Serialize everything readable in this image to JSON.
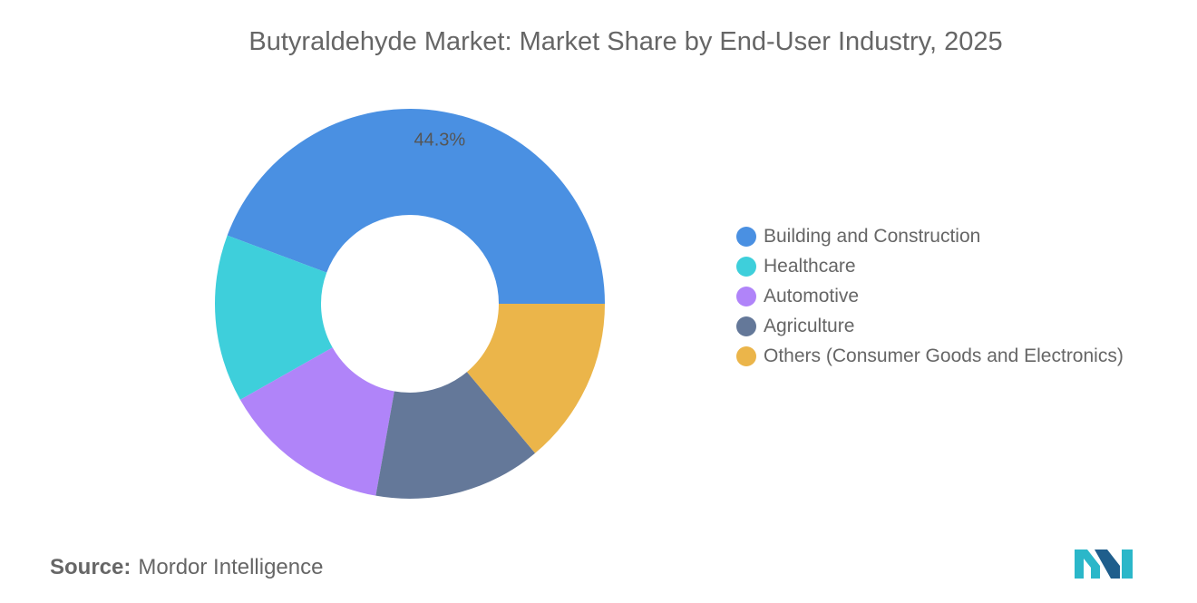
{
  "chart_data": {
    "type": "pie",
    "variant": "donut",
    "title": "Butyraldehyde Market: Market Share by End-User Industry, 2025",
    "categories": [
      "Building and Construction",
      "Healthcare",
      "Automotive",
      "Agriculture",
      "Others (Consumer Goods and Electronics)"
    ],
    "values": [
      44.3,
      13.9,
      14.0,
      13.9,
      13.9
    ],
    "colors": [
      "#4A90E2",
      "#3ECFDB",
      "#B084F9",
      "#647899",
      "#EBB54A"
    ],
    "data_labels": [
      "44.3%",
      "",
      "",
      "",
      ""
    ],
    "legend_position": "right"
  },
  "source": {
    "label": "Source:",
    "text": "Mordor Intelligence"
  },
  "logo": {
    "name": "mordor-intelligence-logo",
    "text": "MI"
  }
}
